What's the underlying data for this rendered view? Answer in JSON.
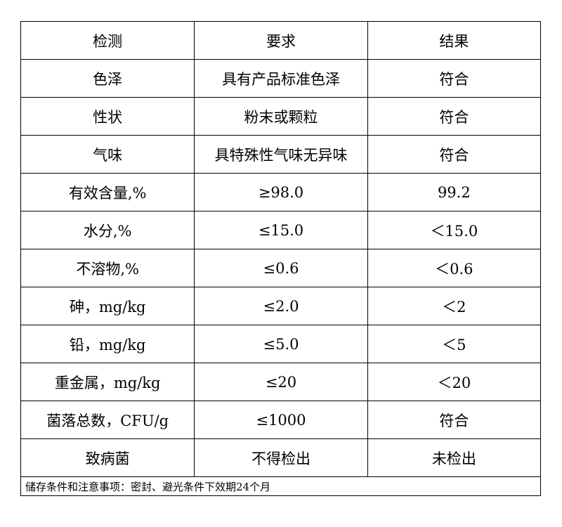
{
  "header": [
    "检测",
    "要求",
    "结果"
  ],
  "rows": [
    [
      "色泽",
      "具有产品标准色泽",
      "符合"
    ],
    [
      "性状",
      "粉末或颗粒",
      "符合"
    ],
    [
      "气味",
      "具特殊性气味无异味",
      "符合"
    ],
    [
      "有效含量,%",
      "≥98.0",
      "99.2"
    ],
    [
      "水分,%",
      "≤15.0",
      "＜15.0"
    ],
    [
      "不溶物,%",
      "≤0.6",
      "＜0.6"
    ],
    [
      "砷，mg/kg",
      "≤2.0",
      "＜2"
    ],
    [
      "铅，mg/kg",
      "≤5.0",
      "＜5"
    ],
    [
      "重金属，mg/kg",
      "≤20",
      "＜20"
    ],
    [
      "菌落总数，CFU/g",
      "≤1000",
      "符合"
    ],
    [
      "致病菌",
      "不得检出",
      "未检出"
    ]
  ],
  "footer": "储存条件和注意事项：密封、避光条件下效期24个月"
}
